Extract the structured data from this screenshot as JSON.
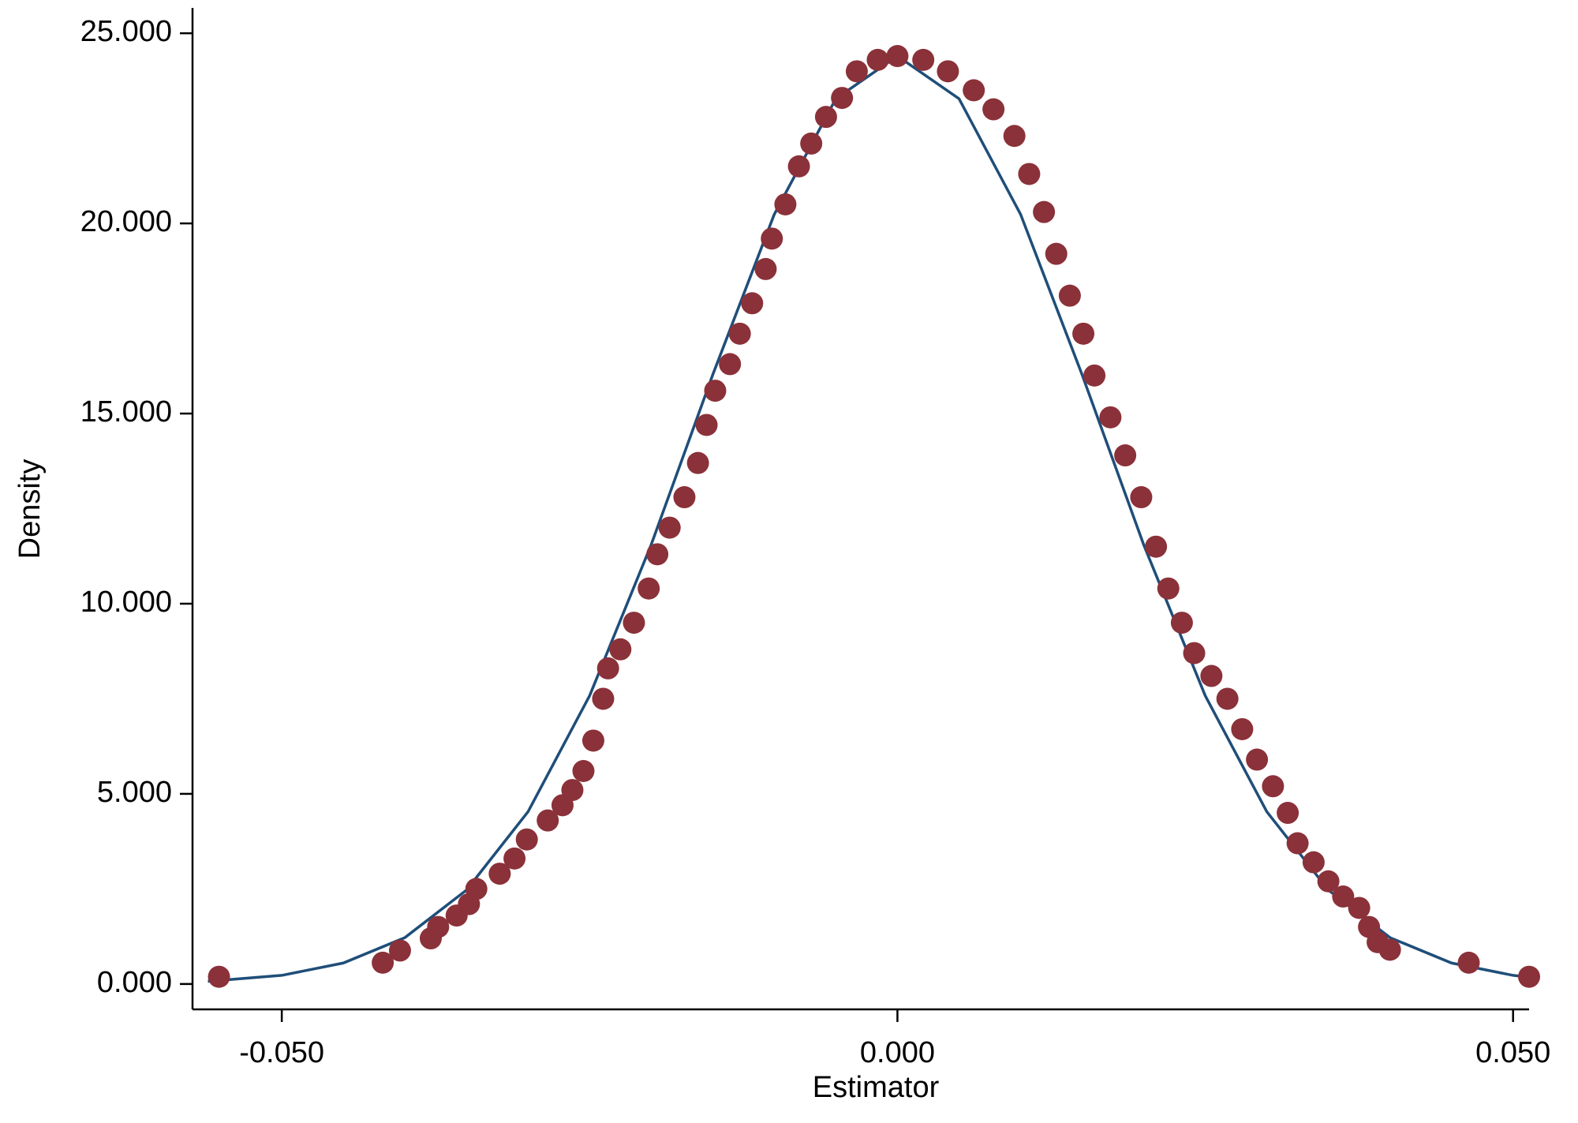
{
  "chart_data": {
    "type": "scatter",
    "x_label": "Estimator",
    "y_label": "Density",
    "xlim": [
      -0.05725,
      0.0513
    ],
    "ylim": [
      -0.667,
      25.667
    ],
    "xticks": [
      {
        "value": -0.05,
        "label": "-0.050"
      },
      {
        "value": 0,
        "label": "0.000"
      },
      {
        "value": 0.05,
        "label": "0.050"
      }
    ],
    "yticks": [
      {
        "value": 0,
        "label": "0.000"
      },
      {
        "value": 5,
        "label": "5.000"
      },
      {
        "value": 10,
        "label": "10.000"
      },
      {
        "value": 15,
        "label": "15.000"
      },
      {
        "value": 20,
        "label": "20.000"
      },
      {
        "value": 25,
        "label": "25.000"
      }
    ],
    "series": [
      {
        "style": "line",
        "color": "#1f4e79",
        "x": [
          -0.056,
          -0.05,
          -0.045,
          -0.04,
          -0.035,
          -0.03,
          -0.025,
          -0.02,
          -0.015,
          -0.01,
          -0.005,
          0,
          0.005,
          0.01,
          0.015,
          0.02,
          0.025,
          0.03,
          0.035,
          0.04,
          0.045,
          0.05,
          0.0513
        ],
        "values": [
          0.069,
          0.227,
          0.552,
          1.22,
          2.47,
          4.53,
          7.58,
          11.55,
          16.02,
          20.24,
          23.28,
          24.4,
          23.28,
          20.24,
          16.02,
          11.55,
          7.58,
          4.53,
          2.47,
          1.22,
          0.552,
          0.227,
          0.178
        ]
      },
      {
        "style": "points",
        "color": "#8b3139",
        "x": [
          -0.0551,
          -0.0418,
          -0.0404,
          -0.0379,
          -0.0373,
          -0.0358,
          -0.0348,
          -0.0342,
          -0.0323,
          -0.0311,
          -0.0301,
          -0.0284,
          -0.0272,
          -0.0264,
          -0.0255,
          -0.0247,
          -0.0239,
          -0.0235,
          -0.0225,
          -0.0214,
          -0.0202,
          -0.0195,
          -0.0185,
          -0.0173,
          -0.0162,
          -0.0155,
          -0.0148,
          -0.0136,
          -0.0128,
          -0.0118,
          -0.0107,
          -0.0102,
          -0.0091,
          -0.008,
          -0.007,
          -0.0058,
          -0.0045,
          -0.0033,
          -0.0016,
          0,
          0.0021,
          0.0041,
          0.0062,
          0.0078,
          0.0095,
          0.0107,
          0.0119,
          0.0129,
          0.014,
          0.0151,
          0.016,
          0.0173,
          0.0185,
          0.0198,
          0.021,
          0.022,
          0.0231,
          0.0241,
          0.0255,
          0.0268,
          0.028,
          0.0292,
          0.0305,
          0.0317,
          0.0325,
          0.0338,
          0.035,
          0.0362,
          0.0375,
          0.0383,
          0.039,
          0.04,
          0.0464,
          0.0513
        ],
        "values": [
          0.19,
          0.56,
          0.88,
          1.2,
          1.5,
          1.8,
          2.1,
          2.5,
          2.9,
          3.3,
          3.8,
          4.3,
          4.7,
          5.1,
          5.6,
          6.4,
          7.5,
          8.3,
          8.8,
          9.5,
          10.4,
          11.3,
          12.0,
          12.8,
          13.7,
          14.7,
          15.6,
          16.3,
          17.1,
          17.9,
          18.8,
          19.6,
          20.5,
          21.5,
          22.1,
          22.8,
          23.3,
          24.0,
          24.3,
          24.4,
          24.3,
          24.0,
          23.5,
          23.0,
          22.3,
          21.3,
          20.3,
          19.2,
          18.1,
          17.1,
          16.0,
          14.9,
          13.9,
          12.8,
          11.5,
          10.4,
          9.5,
          8.7,
          8.1,
          7.5,
          6.7,
          5.9,
          5.2,
          4.5,
          3.7,
          3.2,
          2.7,
          2.3,
          2.0,
          1.5,
          1.1,
          0.9,
          0.56,
          0.19
        ]
      }
    ]
  }
}
